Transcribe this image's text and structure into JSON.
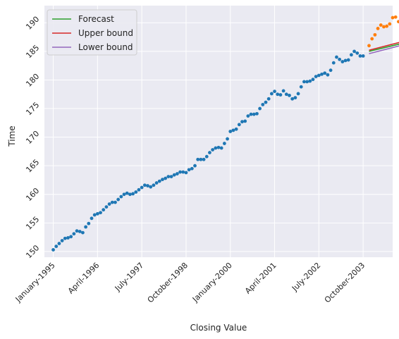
{
  "chart_data": {
    "type": "scatter",
    "xlabel": "Closing Value",
    "ylabel": "Time",
    "x_tick_labels": [
      "January-1995",
      "April-1996",
      "July-1997",
      "October-1998",
      "January-2000",
      "April-2001",
      "July-2002",
      "October-2003"
    ],
    "y_ticks": [
      150,
      155,
      160,
      165,
      170,
      175,
      180,
      185,
      190
    ],
    "ylim": [
      149,
      193
    ],
    "x_index_range": [
      -3,
      115
    ],
    "grid": true,
    "legend_position": "top-left",
    "x_tick_index": [
      0,
      15,
      30,
      45,
      60,
      75,
      90,
      105
    ],
    "colors": {
      "background": "#eaeaf2",
      "grid": "#ffffff",
      "observed": "#1f77b4",
      "actual_future": "#ff7f0e",
      "forecast": "#2ca02c",
      "upper": "#d62728",
      "lower": "#9467bd"
    },
    "observed": {
      "x_start_index": 0,
      "values": [
        150.3,
        150.9,
        151.4,
        151.9,
        152.3,
        152.4,
        152.6,
        153.1,
        153.6,
        153.5,
        153.3,
        154.3,
        154.9,
        155.8,
        156.4,
        156.6,
        156.8,
        157.3,
        157.8,
        158.3,
        158.6,
        158.6,
        159.1,
        159.6,
        160.0,
        160.2,
        160.0,
        160.1,
        160.4,
        160.8,
        161.2,
        161.6,
        161.5,
        161.3,
        161.6,
        162.0,
        162.3,
        162.6,
        162.8,
        163.1,
        163.1,
        163.4,
        163.6,
        163.9,
        163.9,
        163.8,
        164.3,
        164.5,
        165.0,
        166.1,
        166.1,
        166.1,
        166.6,
        167.3,
        167.8,
        168.1,
        168.2,
        168.1,
        168.9,
        169.7,
        171.0,
        171.2,
        171.4,
        172.2,
        172.7,
        172.8,
        173.7,
        174.0,
        174.0,
        174.1,
        175.0,
        175.7,
        176.1,
        176.7,
        177.6,
        178.0,
        177.5,
        177.4,
        178.1,
        177.5,
        177.3,
        176.7,
        176.9,
        177.6,
        178.8,
        179.7,
        179.7,
        179.8,
        180.1,
        180.6,
        180.8,
        181.0,
        181.2,
        180.9,
        181.7,
        183.0,
        184.0,
        183.6,
        183.2,
        183.4,
        183.5,
        184.4,
        185.0,
        184.7,
        184.2,
        184.2
      ]
    },
    "actual_future": {
      "x_start_index": 107,
      "values": [
        186.0,
        187.2,
        187.9,
        189.0,
        189.6,
        189.3,
        189.4,
        189.8,
        190.9,
        191.0,
        190.2
      ]
    },
    "series": [
      {
        "name": "Forecast",
        "x_index": [
          107,
          119
        ],
        "values": [
          185.0,
          186.5
        ]
      },
      {
        "name": "Upper bound",
        "x_index": [
          107,
          119
        ],
        "values": [
          185.2,
          186.8
        ]
      },
      {
        "name": "Lower bound",
        "x_index": [
          107,
          119
        ],
        "values": [
          184.6,
          186.2
        ]
      }
    ]
  }
}
